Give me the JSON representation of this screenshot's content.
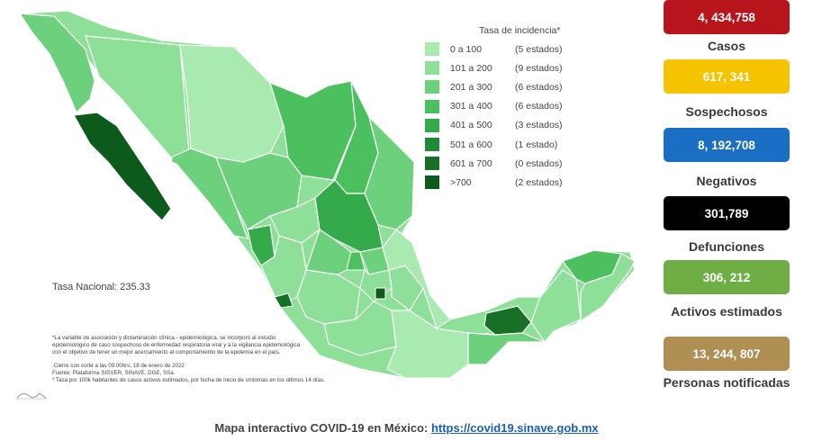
{
  "legend": {
    "title": "Tasa de incidencia*",
    "rows": [
      {
        "range": "0 a 100",
        "count": "(5 estados)",
        "color": "#a8eab0"
      },
      {
        "range": "101 a 200",
        "count": "(9 estados)",
        "color": "#8ee098"
      },
      {
        "range": "201 a 300",
        "count": "(6 estados)",
        "color": "#6dd07c"
      },
      {
        "range": "301 a 400",
        "count": "(6 estados)",
        "color": "#4cbf5f"
      },
      {
        "range": "401 a 500",
        "count": "(3 estados)",
        "color": "#35aa4a"
      },
      {
        "range": "501 a 600",
        "count": "(1 estado)",
        "color": "#228a36"
      },
      {
        "range": "601 a 700",
        "count": "(0 estados)",
        "color": "#167127"
      },
      {
        "range": ">700",
        "count": "(2 estados)",
        "color": "#0c5a1c"
      }
    ]
  },
  "tasa_nacional": "Tasa Nacional: 235.33",
  "notes": {
    "line1": "*La variable de asociación y dictaminación clínica - epidemiológica, se incorporó al estudio",
    "line2": "epidemiológico de caso sospechoso de enfermedad respiratoria viral y a la vigilancia epidemiológica",
    "line3": "con el objetivo de tener un mejor acercamiento al comportamiento de la epidemia en el país.",
    "line4": ".Cierre con corte a las 09:00hrs, 18 de enero de 2022",
    "line5": "Fuente: Plataforma SISVER, SINAVE, DGE, SSa.",
    "line6": "* Tasa por 100k habitantes de casos activos estimados, por fecha de inicio de síntomas en los últimos 14 días."
  },
  "stats": [
    {
      "value": "4, 434,758",
      "label": "Casos",
      "color": "#b7141b",
      "text_color": "#ffffff"
    },
    {
      "value": "617, 341",
      "label": "Sospechosos",
      "color": "#f5c300",
      "text_color": "#ffffff"
    },
    {
      "value": "8, 192,708",
      "label": "Negativos",
      "color": "#1a6fc4",
      "text_color": "#ffffff"
    },
    {
      "value": "301,789",
      "label": "Defunciones",
      "color": "#000000",
      "text_color": "#ffffff"
    },
    {
      "value": "306, 212",
      "label": "Activos estimados",
      "color": "#6fae44",
      "text_color": "#ffffff"
    },
    {
      "value": "13, 244, 807",
      "label": "Personas notificadas",
      "color": "#b08f54",
      "text_color": "#ffffff"
    }
  ],
  "footer": {
    "text": "Mapa interactivo COVID-19 en México:",
    "link": "https://covid19.sinave.gob.mx"
  }
}
